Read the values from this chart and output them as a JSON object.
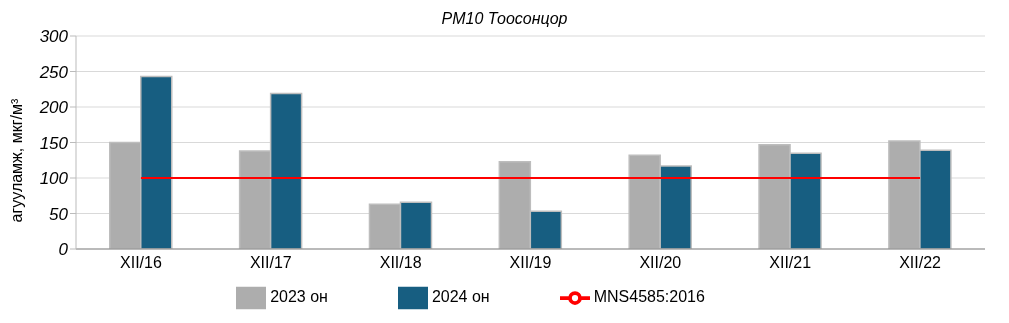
{
  "chart_data": {
    "type": "bar",
    "title": "PM10 Тоосонцор",
    "ylabel": "агууламж, мкг/м³",
    "categories": [
      "XII/16",
      "XII/17",
      "XII/18",
      "XII/19",
      "XII/20",
      "XII/21",
      "XII/22"
    ],
    "series": [
      {
        "name": "2023 он",
        "color": "#adadad",
        "values": [
          150,
          138,
          63,
          123,
          132,
          147,
          152
        ]
      },
      {
        "name": "2024 он",
        "color": "#175e81",
        "values": [
          243,
          219,
          66,
          53,
          117,
          135,
          139
        ]
      },
      {
        "name": "MNS4585:2016",
        "type": "line",
        "color": "#ff0000",
        "values": [
          100,
          100,
          100,
          100,
          100,
          100,
          100
        ]
      }
    ],
    "ylim": [
      0,
      300
    ],
    "yticks": [
      0,
      50,
      100,
      150,
      200,
      250,
      300
    ],
    "grid": "y",
    "legend": "bottom"
  }
}
